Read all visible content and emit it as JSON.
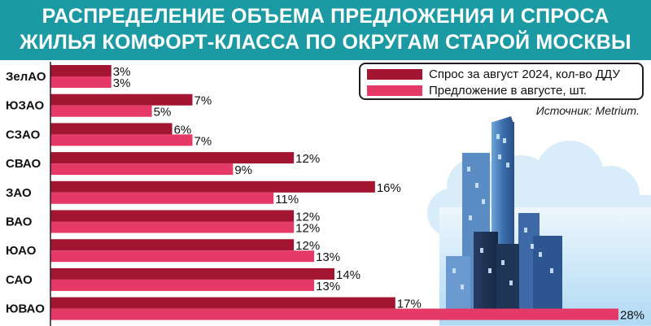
{
  "title_lines": [
    "РАСПРЕДЕЛЕНИЕ ОБЪЕМА ПРЕДЛОЖЕНИЯ И СПРОСА",
    "ЖИЛЬЯ КОМФОРТ-КЛАССА ПО ОКРУГАМ СТАРОЙ МОСКВЫ"
  ],
  "source": "Источник: Metrium.",
  "colors": {
    "banner": "#1c9aa4",
    "demand": "#a31530",
    "supply": "#e53a67",
    "sky": "#8fcaf0"
  },
  "chart_data": {
    "type": "bar",
    "orientation": "horizontal",
    "categories": [
      "ЗелАО",
      "ЮЗАО",
      "СЗАО",
      "СВАО",
      "ЗАО",
      "ВАО",
      "ЮАО",
      "САО",
      "ЮВАО"
    ],
    "series": [
      {
        "name": "Спрос за август 2024, кол-во ДДУ",
        "values": [
          3,
          7,
          6,
          12,
          16,
          12,
          12,
          14,
          17
        ]
      },
      {
        "name": "Предложение в августе, шт.",
        "values": [
          3,
          5,
          7,
          9,
          11,
          12,
          13,
          13,
          28
        ]
      }
    ],
    "value_suffix": "%",
    "xlim": [
      0,
      28
    ],
    "legend_position": "top-right",
    "grid": false
  }
}
